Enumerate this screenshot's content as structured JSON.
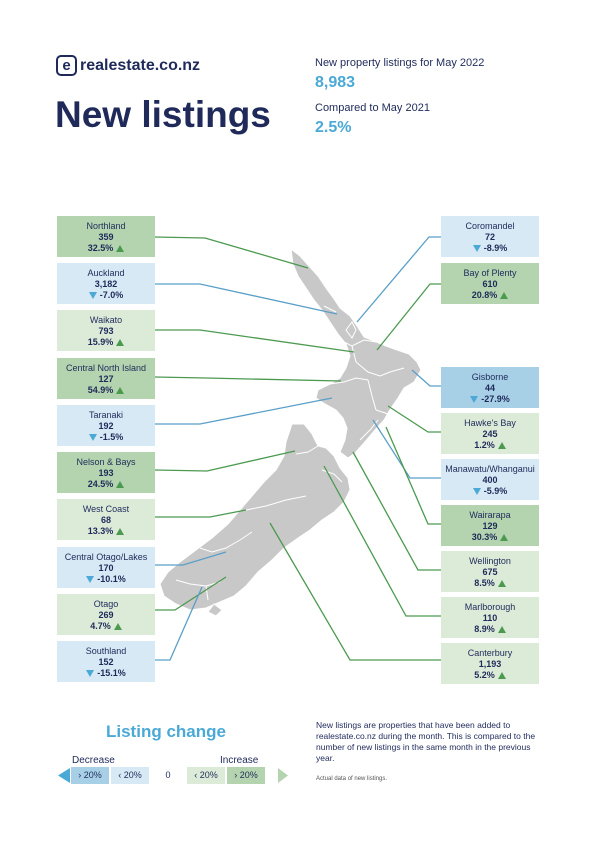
{
  "brand": {
    "logo_letter": "e",
    "name": "realestate.co.nz"
  },
  "page_title": "New listings",
  "summary": {
    "listings_label": "New property listings for May 2022",
    "listings_value": "8,983",
    "compare_label": "Compared to May 2021",
    "compare_value": "2.5%"
  },
  "regions": [
    {
      "name": "Northland",
      "value": "359",
      "change": "32.5%",
      "direction": "up"
    },
    {
      "name": "Auckland",
      "value": "3,182",
      "change": "-7.0%",
      "direction": "down"
    },
    {
      "name": "Waikato",
      "value": "793",
      "change": "15.9%",
      "direction": "up"
    },
    {
      "name": "Central North Island",
      "value": "127",
      "change": "54.9%",
      "direction": "up"
    },
    {
      "name": "Taranaki",
      "value": "192",
      "change": "-1.5%",
      "direction": "down"
    },
    {
      "name": "Nelson & Bays",
      "value": "193",
      "change": "24.5%",
      "direction": "up"
    },
    {
      "name": "West Coast",
      "value": "68",
      "change": "13.3%",
      "direction": "up"
    },
    {
      "name": "Central Otago/Lakes",
      "value": "170",
      "change": "-10.1%",
      "direction": "down"
    },
    {
      "name": "Otago",
      "value": "269",
      "change": "4.7%",
      "direction": "up"
    },
    {
      "name": "Southland",
      "value": "152",
      "change": "-15.1%",
      "direction": "down"
    },
    {
      "name": "Coromandel",
      "value": "72",
      "change": "-8.9%",
      "direction": "down"
    },
    {
      "name": "Bay of Plenty",
      "value": "610",
      "change": "20.8%",
      "direction": "up"
    },
    {
      "name": "Gisborne",
      "value": "44",
      "change": "-27.9%",
      "direction": "down"
    },
    {
      "name": "Hawke's Bay",
      "value": "245",
      "change": "1.2%",
      "direction": "up"
    },
    {
      "name": "Manawatu/Whanganui",
      "value": "400",
      "change": "-5.9%",
      "direction": "down"
    },
    {
      "name": "Wairarapa",
      "value": "129",
      "change": "30.3%",
      "direction": "up"
    },
    {
      "name": "Wellington",
      "value": "675",
      "change": "8.5%",
      "direction": "up"
    },
    {
      "name": "Marlborough",
      "value": "110",
      "change": "8.9%",
      "direction": "up"
    },
    {
      "name": "Canterbury",
      "value": "1,193",
      "change": "5.2%",
      "direction": "up"
    }
  ],
  "colors": {
    "dark_green": "#b3d4ae",
    "light_green": "#dcebd8",
    "light_blue": "#d6e9f4",
    "dark_blue": "#a7d0e6",
    "up_arrow": "#4c9a50",
    "down_arrow": "#4aa9d6",
    "green_line": "#4c9a50",
    "blue_line": "#5a9fc8",
    "map_fill": "#c8c8c8"
  },
  "legend": {
    "title": "Listing change",
    "decrease_label": "Decrease",
    "increase_label": "Increase",
    "cells": [
      "› 20%",
      "‹ 20%",
      "0",
      "‹ 20%",
      "› 20%"
    ]
  },
  "footnote": {
    "text": "New listings are properties that have been added to realestate.co.nz during the month. This is compared to the number of new listings in the same month in the previous year.",
    "small": "Actual data of new listings."
  }
}
